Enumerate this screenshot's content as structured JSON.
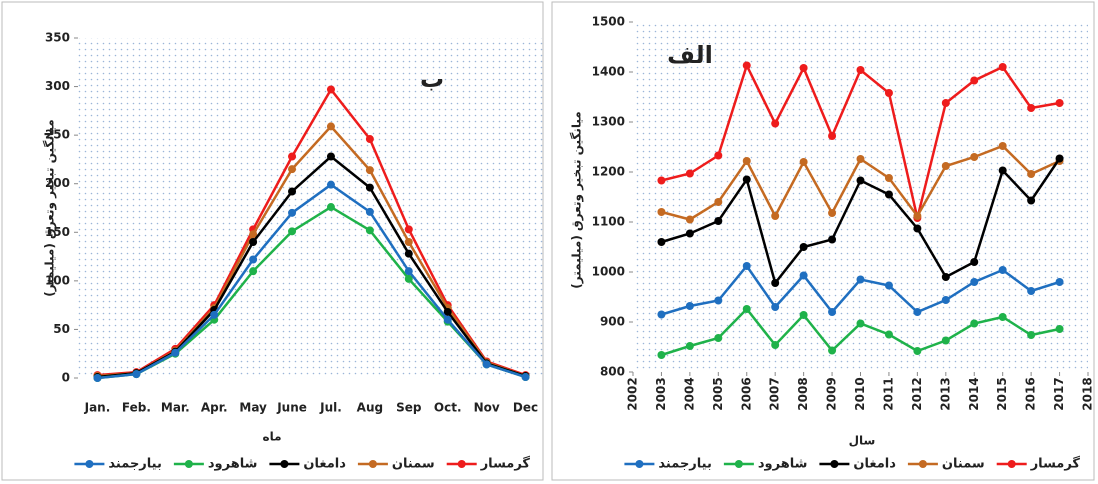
{
  "chart_data": [
    {
      "type": "line",
      "title": "ب",
      "x_label": "ماه",
      "y_label": "میانگین تبخیر وتعرق (میلیمتر)",
      "categories": [
        "Jan.",
        "Feb.",
        "Mar.",
        "Apr.",
        "May",
        "June",
        "Jul.",
        "Aug",
        "Sep",
        "Oct.",
        "Nov",
        "Dec"
      ],
      "ylim": [
        0,
        350
      ],
      "yticks": [
        0,
        50,
        100,
        150,
        200,
        250,
        300,
        350
      ],
      "grid": false,
      "series": [
        {
          "name": "گرمسار",
          "color": "#ee1c1c",
          "values": [
            3,
            6,
            30,
            75,
            153,
            228,
            297,
            246,
            153,
            75,
            17,
            3
          ]
        },
        {
          "name": "سمنان",
          "color": "#c46a22",
          "values": [
            2,
            5,
            28,
            72,
            148,
            215,
            259,
            214,
            140,
            72,
            16,
            2
          ]
        },
        {
          "name": "دامغان",
          "color": "#000000",
          "values": [
            1,
            5,
            27,
            70,
            140,
            192,
            228,
            196,
            128,
            68,
            15,
            2
          ]
        },
        {
          "name": "شاهرود",
          "color": "#1fb24a",
          "values": [
            0,
            4,
            25,
            60,
            110,
            151,
            176,
            152,
            102,
            58,
            14,
            1
          ]
        },
        {
          "name": "بیارجمند",
          "color": "#1f6fc0",
          "values": [
            0,
            4,
            26,
            65,
            122,
            170,
            199,
            171,
            110,
            60,
            14,
            1
          ]
        }
      ]
    },
    {
      "type": "line",
      "title": "الف",
      "x_label": "سال",
      "y_label": "میانگین تبخیر وتعرق (میلیمتر)",
      "x": [
        2003,
        2004,
        2005,
        2006,
        2007,
        2008,
        2009,
        2010,
        2011,
        2012,
        2013,
        2014,
        2015,
        2016,
        2017
      ],
      "xlim": [
        2002,
        2018
      ],
      "xticks": [
        2002,
        2003,
        2004,
        2005,
        2006,
        2007,
        2008,
        2009,
        2010,
        2011,
        2012,
        2013,
        2014,
        2015,
        2016,
        2017,
        2018
      ],
      "ylim": [
        800,
        1500
      ],
      "yticks": [
        800,
        900,
        1000,
        1100,
        1200,
        1300,
        1400,
        1500
      ],
      "grid": false,
      "series": [
        {
          "name": "گرمسار",
          "color": "#ee1c1c",
          "values": [
            1183,
            1197,
            1233,
            1413,
            1297,
            1408,
            1272,
            1404,
            1358,
            1108,
            1338,
            1383,
            1410,
            1328,
            1338
          ]
        },
        {
          "name": "سمنان",
          "color": "#c46a22",
          "values": [
            1120,
            1105,
            1140,
            1222,
            1112,
            1220,
            1118,
            1226,
            1188,
            1112,
            1212,
            1230,
            1252,
            1196,
            1222
          ]
        },
        {
          "name": "دامغان",
          "color": "#000000",
          "values": [
            1060,
            1077,
            1102,
            1185,
            978,
            1050,
            1065,
            1183,
            1155,
            1087,
            990,
            1020,
            1203,
            1143,
            1227
          ]
        },
        {
          "name": "شاهرود",
          "color": "#1fb24a",
          "values": [
            834,
            852,
            868,
            926,
            854,
            914,
            843,
            897,
            875,
            842,
            863,
            897,
            910,
            874,
            886
          ]
        },
        {
          "name": "بیارجمند",
          "color": "#1f6fc0",
          "values": [
            915,
            932,
            943,
            1012,
            930,
            993,
            920,
            985,
            973,
            920,
            944,
            980,
            1004,
            962,
            980
          ]
        }
      ]
    }
  ]
}
